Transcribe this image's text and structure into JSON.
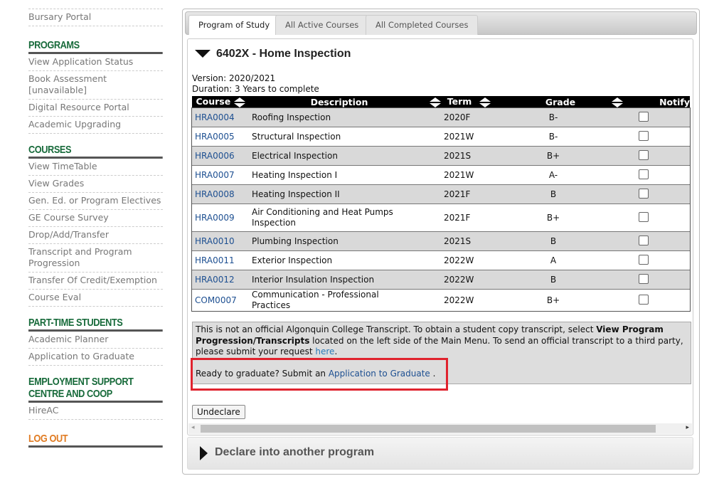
{
  "sidebar": {
    "top_items": [
      "Bursary Portal"
    ],
    "sections": [
      {
        "heading": "PROGRAMS",
        "items": [
          "View Application Status",
          "Book Assessment [unavailable]",
          "Digital Resource Portal",
          "Academic Upgrading"
        ]
      },
      {
        "heading": "COURSES",
        "items": [
          "View TimeTable",
          "View Grades",
          "Gen. Ed. or Program Electives",
          "GE Course Survey",
          "Drop/Add/Transfer",
          "Transcript and Program Progression",
          "Transfer Of Credit/Exemption",
          "Course Eval"
        ]
      },
      {
        "heading": "PART-TIME STUDENTS",
        "items": [
          "Academic Planner",
          "Application to Graduate"
        ]
      },
      {
        "heading": "EMPLOYMENT SUPPORT CENTRE AND COOP",
        "items": [
          "HireAC"
        ]
      }
    ],
    "logout": "LOG OUT"
  },
  "tabs": [
    {
      "label": "Program of Study",
      "active": true
    },
    {
      "label": "All Active Courses"
    },
    {
      "label": "All Completed Courses"
    }
  ],
  "program": {
    "title": "6402X - Home Inspection",
    "version": "Version: 2020/2021",
    "duration": "Duration: 3 Years to complete"
  },
  "table": {
    "headers": [
      "Course",
      "Description",
      "Term",
      "Grade",
      "Notify"
    ],
    "rows": [
      {
        "course": "HRA0004",
        "description": "Roofing Inspection",
        "term": "2020F",
        "grade": "B-"
      },
      {
        "course": "HRA0005",
        "description": "Structural Inspection",
        "term": "2021W",
        "grade": "B-"
      },
      {
        "course": "HRA0006",
        "description": "Electrical Inspection",
        "term": "2021S",
        "grade": "B+"
      },
      {
        "course": "HRA0007",
        "description": "Heating Inspection I",
        "term": "2021W",
        "grade": "A-"
      },
      {
        "course": "HRA0008",
        "description": "Heating Inspection II",
        "term": "2021F",
        "grade": "B"
      },
      {
        "course": "HRA0009",
        "description": "Air Conditioning and Heat Pumps Inspection",
        "term": "2021F",
        "grade": "B+"
      },
      {
        "course": "HRA0010",
        "description": "Plumbing Inspection",
        "term": "2021S",
        "grade": "B"
      },
      {
        "course": "HRA0011",
        "description": "Exterior Inspection",
        "term": "2022W",
        "grade": "A"
      },
      {
        "course": "HRA0012",
        "description": "Interior Insulation Inspection",
        "term": "2022W",
        "grade": "B"
      },
      {
        "course": "COM0007",
        "description": "Communication - Professional Practices",
        "term": "2022W",
        "grade": "B+"
      }
    ]
  },
  "notice": {
    "p1": "This is not an official Algonquin College Transcript. To obtain a student copy transcript, select ",
    "b1": "View Program Progression/Transcripts",
    "p2": " located on the left side of the Main Menu. To send an official transcript to a third party, please submit your request ",
    "link": "here",
    "p3": ".",
    "grad_text": "Ready to graduate? Submit an ",
    "grad_link": "Application to Graduate",
    "grad_end": " ."
  },
  "undeclare_label": "Undeclare",
  "declare_title": "Declare into another program",
  "colors": {
    "heading": "#176a3a",
    "logout": "#e07b22",
    "link": "#1d4f91",
    "highlight": "#e0232e"
  }
}
